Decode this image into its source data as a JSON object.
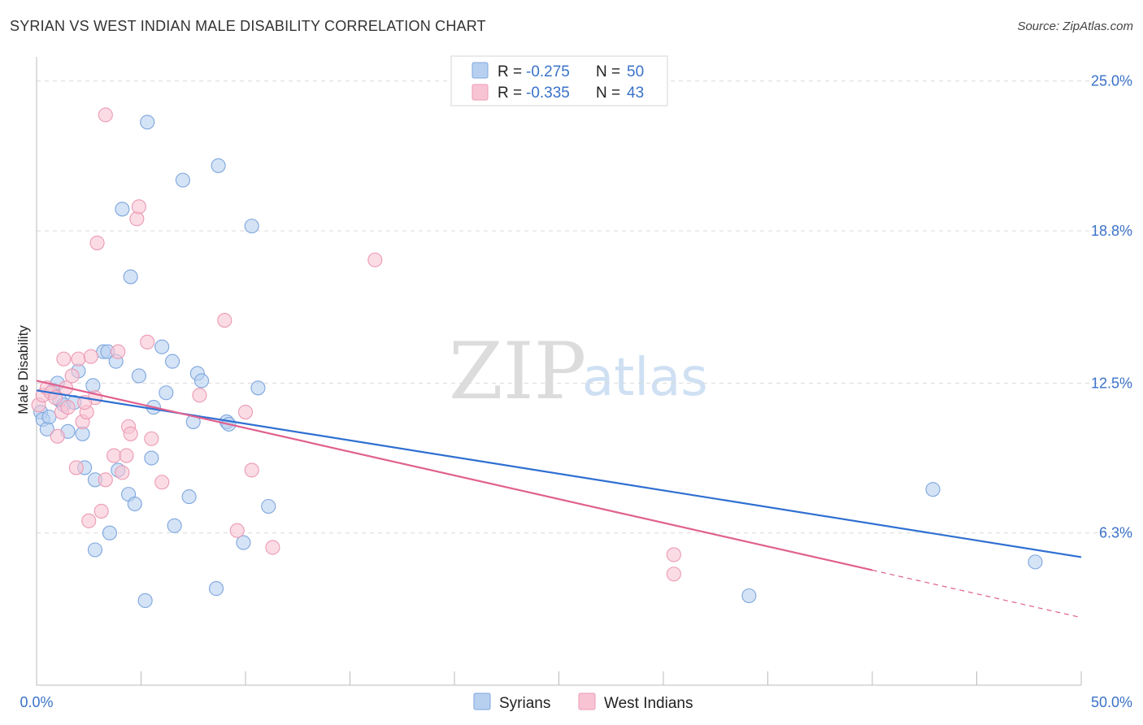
{
  "header": {
    "title": "SYRIAN VS WEST INDIAN MALE DISABILITY CORRELATION CHART",
    "source": "Source: ZipAtlas.com"
  },
  "watermark": {
    "zip": "ZIP",
    "atlas": "atlas"
  },
  "legend": {
    "rows": [
      {
        "r_label": "R =",
        "r_value": "-0.275",
        "n_label": "N =",
        "n_value": "50"
      },
      {
        "r_label": "R =",
        "r_value": "-0.335",
        "n_label": "N =",
        "n_value": "43"
      }
    ]
  },
  "bottom_legend": {
    "items": [
      "Syrians",
      "West Indians"
    ]
  },
  "colors": {
    "syrians_fill": "#b8d0f0",
    "syrians_stroke": "#7ea6de",
    "syrians_line": "#2f6fd1",
    "westindians_fill": "#f8c4d4",
    "westindians_stroke": "#ec9ab4",
    "westindians_line": "#e0608e",
    "tick_label": "#3a72c8",
    "grid": "#d9d9d9"
  },
  "chart_data": {
    "type": "scatter",
    "title": "SYRIAN VS WEST INDIAN MALE DISABILITY CORRELATION CHART",
    "xlabel": "",
    "ylabel": "Male Disability",
    "xlim": [
      0,
      50
    ],
    "ylim": [
      0,
      26
    ],
    "x_tick_labels": [
      "0.0%",
      "50.0%"
    ],
    "y_ticks": [
      6.3,
      12.5,
      18.8,
      25.0
    ],
    "y_tick_labels": [
      "6.3%",
      "12.5%",
      "18.8%",
      "25.0%"
    ],
    "grid": true,
    "legend_position": "top-center",
    "series": [
      {
        "name": "Syrians",
        "r": -0.275,
        "n": 50,
        "trend": {
          "x": [
            0,
            50
          ],
          "y": [
            12.2,
            5.3
          ]
        },
        "points": [
          [
            0.2,
            11.3
          ],
          [
            0.3,
            11.0
          ],
          [
            0.5,
            10.6
          ],
          [
            0.6,
            11.1
          ],
          [
            0.8,
            12.2
          ],
          [
            1.0,
            12.5
          ],
          [
            1.1,
            11.8
          ],
          [
            1.3,
            11.6
          ],
          [
            1.5,
            10.5
          ],
          [
            1.8,
            11.7
          ],
          [
            2.0,
            13.0
          ],
          [
            2.2,
            10.4
          ],
          [
            2.3,
            9.0
          ],
          [
            2.7,
            12.4
          ],
          [
            2.8,
            8.5
          ],
          [
            2.8,
            5.6
          ],
          [
            3.2,
            13.8
          ],
          [
            3.4,
            13.8
          ],
          [
            3.5,
            6.3
          ],
          [
            3.8,
            13.4
          ],
          [
            3.9,
            8.9
          ],
          [
            4.1,
            19.7
          ],
          [
            4.4,
            7.9
          ],
          [
            4.5,
            16.9
          ],
          [
            4.7,
            7.5
          ],
          [
            4.9,
            12.8
          ],
          [
            5.2,
            3.5
          ],
          [
            5.3,
            23.3
          ],
          [
            5.5,
            9.4
          ],
          [
            5.6,
            11.5
          ],
          [
            6.0,
            14.0
          ],
          [
            6.2,
            12.1
          ],
          [
            6.5,
            13.4
          ],
          [
            6.6,
            6.6
          ],
          [
            7.0,
            20.9
          ],
          [
            7.3,
            7.8
          ],
          [
            7.5,
            10.9
          ],
          [
            7.7,
            12.9
          ],
          [
            7.9,
            12.6
          ],
          [
            8.6,
            4.0
          ],
          [
            8.7,
            21.5
          ],
          [
            9.1,
            10.9
          ],
          [
            9.2,
            10.8
          ],
          [
            9.9,
            5.9
          ],
          [
            10.3,
            19.0
          ],
          [
            10.6,
            12.3
          ],
          [
            11.1,
            7.4
          ],
          [
            34.1,
            3.7
          ],
          [
            42.9,
            8.1
          ],
          [
            47.8,
            5.1
          ]
        ]
      },
      {
        "name": "West Indians",
        "r": -0.335,
        "n": 43,
        "trend": {
          "x": [
            0,
            50
          ],
          "y": [
            12.6,
            2.8
          ],
          "solid_until_x": 40
        },
        "points": [
          [
            0.1,
            11.6
          ],
          [
            0.3,
            12.0
          ],
          [
            0.5,
            12.3
          ],
          [
            0.7,
            12.1
          ],
          [
            0.9,
            11.9
          ],
          [
            1.0,
            10.3
          ],
          [
            1.2,
            11.3
          ],
          [
            1.3,
            13.5
          ],
          [
            1.5,
            11.5
          ],
          [
            1.7,
            12.8
          ],
          [
            1.9,
            9.0
          ],
          [
            2.0,
            13.5
          ],
          [
            2.2,
            10.9
          ],
          [
            2.4,
            11.3
          ],
          [
            2.5,
            6.8
          ],
          [
            2.6,
            13.6
          ],
          [
            2.8,
            11.9
          ],
          [
            3.1,
            7.2
          ],
          [
            3.3,
            8.5
          ],
          [
            3.7,
            9.5
          ],
          [
            3.9,
            13.8
          ],
          [
            4.1,
            8.8
          ],
          [
            4.3,
            9.5
          ],
          [
            4.4,
            10.7
          ],
          [
            4.5,
            10.4
          ],
          [
            4.8,
            19.3
          ],
          [
            4.9,
            19.8
          ],
          [
            5.3,
            14.2
          ],
          [
            5.5,
            10.2
          ],
          [
            6.0,
            8.4
          ],
          [
            3.3,
            23.6
          ],
          [
            2.9,
            18.3
          ],
          [
            7.8,
            12.0
          ],
          [
            9.0,
            15.1
          ],
          [
            9.6,
            6.4
          ],
          [
            10.0,
            11.3
          ],
          [
            10.3,
            8.9
          ],
          [
            11.3,
            5.7
          ],
          [
            16.2,
            17.6
          ],
          [
            30.5,
            4.6
          ],
          [
            30.5,
            5.4
          ],
          [
            1.4,
            12.3
          ],
          [
            2.3,
            11.7
          ]
        ]
      }
    ]
  }
}
